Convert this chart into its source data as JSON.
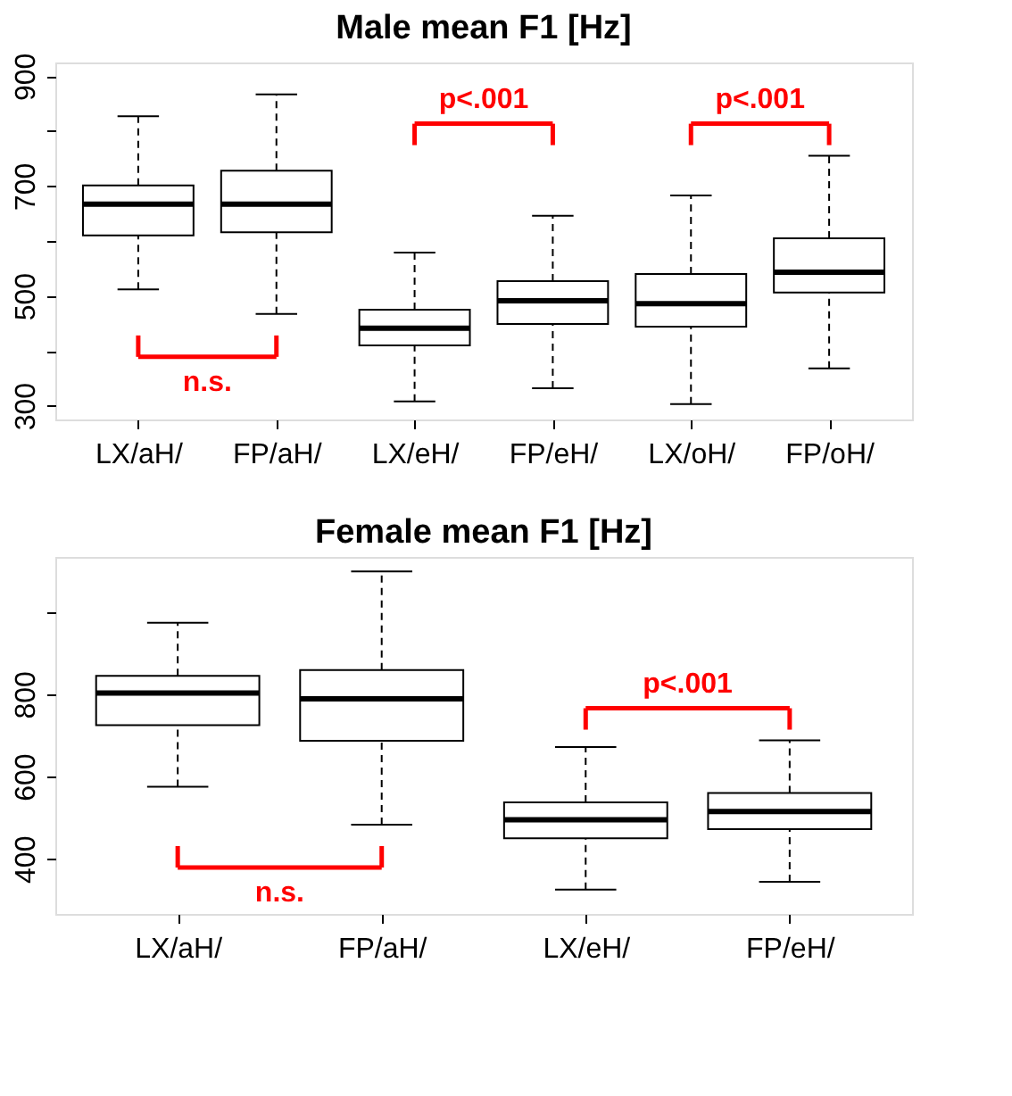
{
  "chart_data": [
    {
      "type": "box",
      "title": "Male mean F1 [Hz]",
      "categories": [
        "LX/aH/",
        "FP/aH/",
        "LX/eH/",
        "FP/eH/",
        "LX/oH/",
        "FP/oH/"
      ],
      "boxes": [
        {
          "low": 512,
          "q1": 610,
          "median": 667,
          "q3": 701,
          "high": 827
        },
        {
          "low": 467,
          "q1": 616,
          "median": 667,
          "q3": 728,
          "high": 867
        },
        {
          "low": 308,
          "q1": 410,
          "median": 441,
          "q3": 475,
          "high": 579
        },
        {
          "low": 332,
          "q1": 449,
          "median": 491,
          "q3": 527,
          "high": 646
        },
        {
          "low": 303,
          "q1": 444,
          "median": 486,
          "q3": 540,
          "high": 683
        },
        {
          "low": 368,
          "q1": 506,
          "median": 543,
          "q3": 605,
          "high": 755
        }
      ],
      "ylim": [
        275,
        925
      ],
      "yticks": [
        300,
        {
          "value": 400,
          "label": null
        },
        500,
        {
          "value": 600,
          "label": null
        },
        700,
        {
          "value": 800,
          "label": null
        },
        900
      ],
      "grid": false,
      "annotations": [
        "n.s.",
        "p<.001",
        "p<.001"
      ]
    },
    {
      "type": "box",
      "title": "Female mean F1 [Hz]",
      "categories": [
        "LX/aH/",
        "FP/aH/",
        "LX/eH/",
        "FP/eH/"
      ],
      "boxes": [
        {
          "low": 575,
          "q1": 725,
          "median": 803,
          "q3": 845,
          "high": 974
        },
        {
          "low": 483,
          "q1": 687,
          "median": 789,
          "q3": 859,
          "high": 1099
        },
        {
          "low": 325,
          "q1": 450,
          "median": 495,
          "q3": 537,
          "high": 672
        },
        {
          "low": 344,
          "q1": 472,
          "median": 515,
          "q3": 560,
          "high": 688
        }
      ],
      "ylim": [
        266,
        1134
      ],
      "yticks": [
        400,
        600,
        800,
        {
          "value": 1000,
          "label": null
        }
      ],
      "grid": false,
      "annotations": [
        "n.s.",
        "p<.001"
      ]
    }
  ]
}
